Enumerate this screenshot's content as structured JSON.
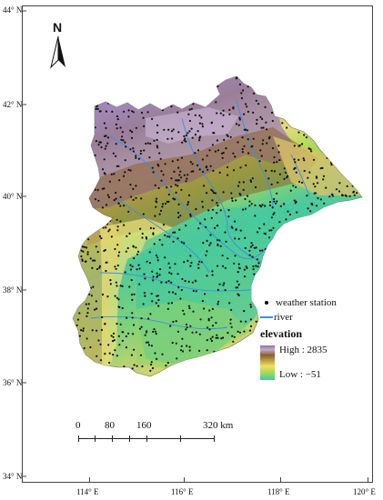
{
  "north": {
    "letter": "N"
  },
  "graticule": {
    "latitudes": [
      "44° N",
      "42° N",
      "40° N",
      "38° N",
      "36° N",
      "34° N"
    ],
    "longitudes": [
      "114° E",
      "116° E",
      "118° E",
      "120° E"
    ]
  },
  "legend": {
    "station_label": "weather station",
    "river_label": "river",
    "title": "elevation",
    "high_label": "High : 2835",
    "low_label": "Low : −51"
  },
  "scalebar": {
    "labels": [
      "0",
      "80",
      "160",
      "320 km"
    ]
  },
  "colors": {
    "mountain_high": "#9f86b4",
    "mountain_mid": "#8a6030",
    "upland": "#d2c164",
    "foothill": "#e9e07a",
    "plain_high": "#a9d958",
    "plain_low": "#43c99e",
    "river": "#3b8fdf",
    "station": "#111111"
  }
}
